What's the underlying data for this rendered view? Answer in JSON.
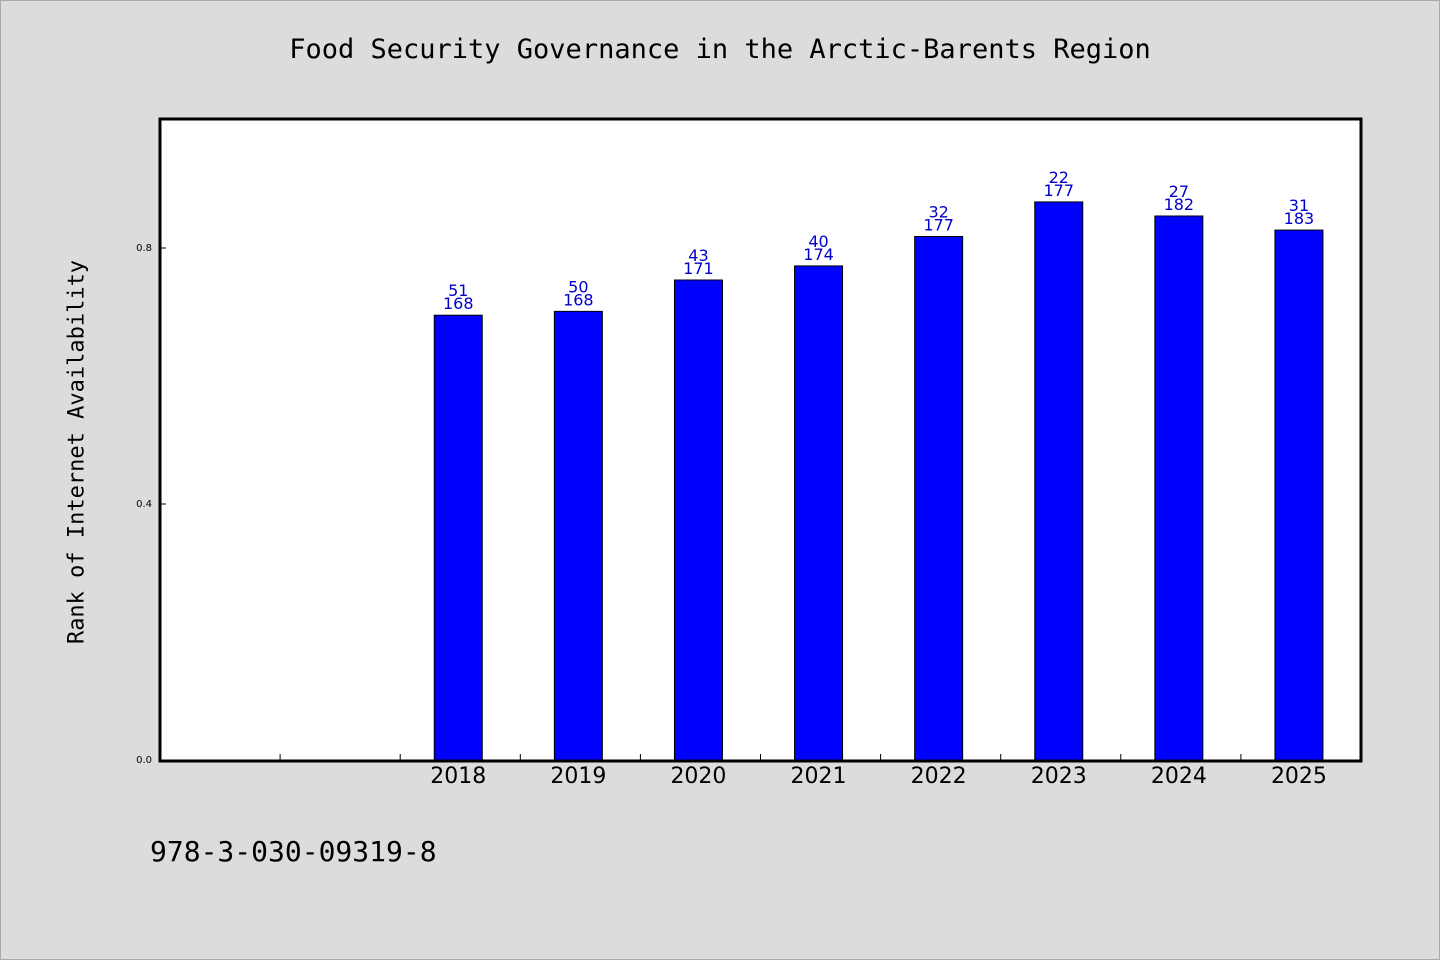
{
  "chart_data": {
    "type": "bar",
    "title": "Food Security Governance in the Arctic-Barents Region",
    "xlabel": "",
    "ylabel": "Rank of Internet Availability",
    "ylim": [
      0,
      1.0
    ],
    "yticks": [
      "0.0",
      "0.4",
      "0.8"
    ],
    "grid": false,
    "bar_color": "#0000ff",
    "label_color": "#0000cc",
    "categories": [
      "",
      "",
      "2018",
      "2019",
      "2020",
      "2021",
      "2022",
      "2023",
      "2024",
      "2025"
    ],
    "values": [
      null,
      null,
      0.695,
      0.701,
      0.75,
      0.772,
      0.818,
      0.872,
      0.85,
      0.828
    ],
    "labels_top": [
      "",
      "",
      "51",
      "50",
      "43",
      "40",
      "32",
      "22",
      "27",
      "31"
    ],
    "labels_bottom": [
      "",
      "",
      "168",
      "168",
      "171",
      "174",
      "177",
      "177",
      "182",
      "183"
    ]
  },
  "footer": {
    "code": "978-3-030-09319-8"
  }
}
